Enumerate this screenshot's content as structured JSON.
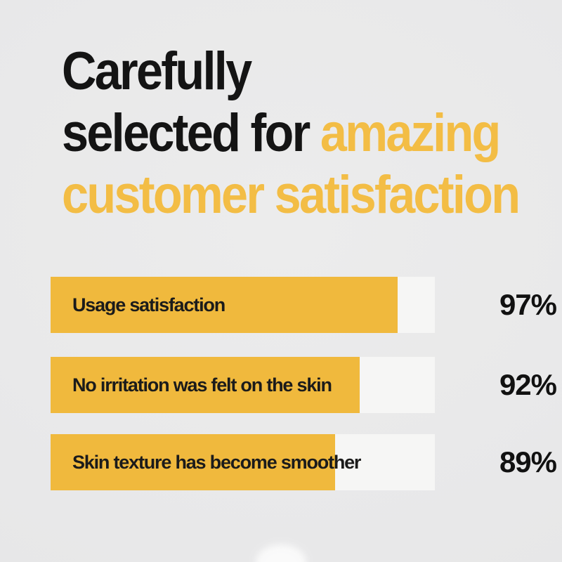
{
  "title": {
    "line1_black": "Carefully",
    "line2_black": "selected for ",
    "line2_accent": "amazing",
    "line3_accent": "customer satisfaction"
  },
  "colors": {
    "background_inner": "#ECECEC",
    "background_outer": "#E5E5E6",
    "title_black": "#141414",
    "title_accent_yellow": "#F3BD45",
    "bar_fill_yellow": "#F0B93D",
    "bar_track_white": "#F6F6F5",
    "value_text": "#111111"
  },
  "chart_data": {
    "type": "bar",
    "orientation": "horizontal",
    "title": "Carefully selected for amazing customer satisfaction",
    "categories": [
      "Usage satisfaction",
      "No irritation was felt on the skin",
      "Skin texture has become smoother"
    ],
    "values": [
      97,
      92,
      89
    ],
    "unit": "%",
    "value_labels_position": "right-of-bar",
    "grid": false,
    "legend": false,
    "bars": [
      {
        "label": "Usage satisfaction",
        "value": 97,
        "value_label": "97%",
        "fill_fraction": 0.903
      },
      {
        "label": "No irritation was felt on the skin",
        "value": 92,
        "value_label": "92%",
        "fill_fraction": 0.804
      },
      {
        "label": "Skin texture has become smoother",
        "value": 89,
        "value_label": "89%",
        "fill_fraction": 0.74
      }
    ]
  }
}
